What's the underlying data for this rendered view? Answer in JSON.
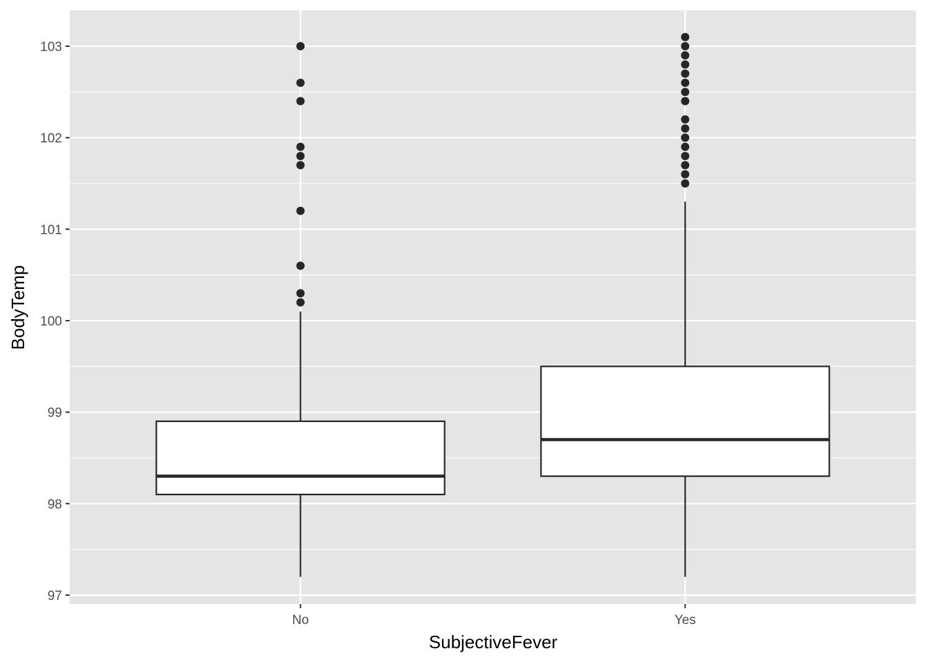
{
  "chart_data": {
    "type": "boxplot",
    "xlabel": "SubjectiveFever",
    "ylabel": "BodyTemp",
    "categories": [
      "No",
      "Yes"
    ],
    "ylim": [
      96.9,
      103.35
    ],
    "yticks": [
      97,
      98,
      99,
      100,
      101,
      102,
      103
    ],
    "y_minor_ticks": [
      97.5,
      98.5,
      99.5,
      100.5,
      101.5,
      102.5
    ],
    "grid": true,
    "colors": {
      "panel_background": "#e5e5e5",
      "grid": "#ffffff",
      "box_fill": "#ffffff",
      "box_line": "#262626",
      "outlier": "#262626"
    },
    "boxes": [
      {
        "category": "No",
        "min": 97.2,
        "q1": 98.1,
        "median": 98.3,
        "q3": 98.9,
        "max": 100.1,
        "outliers": [
          100.2,
          100.3,
          100.6,
          101.2,
          101.7,
          101.8,
          101.9,
          102.4,
          102.6,
          103.0
        ]
      },
      {
        "category": "Yes",
        "min": 97.2,
        "q1": 98.3,
        "median": 98.7,
        "q3": 99.5,
        "max": 101.3,
        "outliers": [
          101.5,
          101.6,
          101.7,
          101.8,
          101.9,
          102.0,
          102.1,
          102.2,
          102.4,
          102.5,
          102.6,
          102.7,
          102.8,
          102.9,
          103.0,
          103.1
        ]
      }
    ]
  }
}
